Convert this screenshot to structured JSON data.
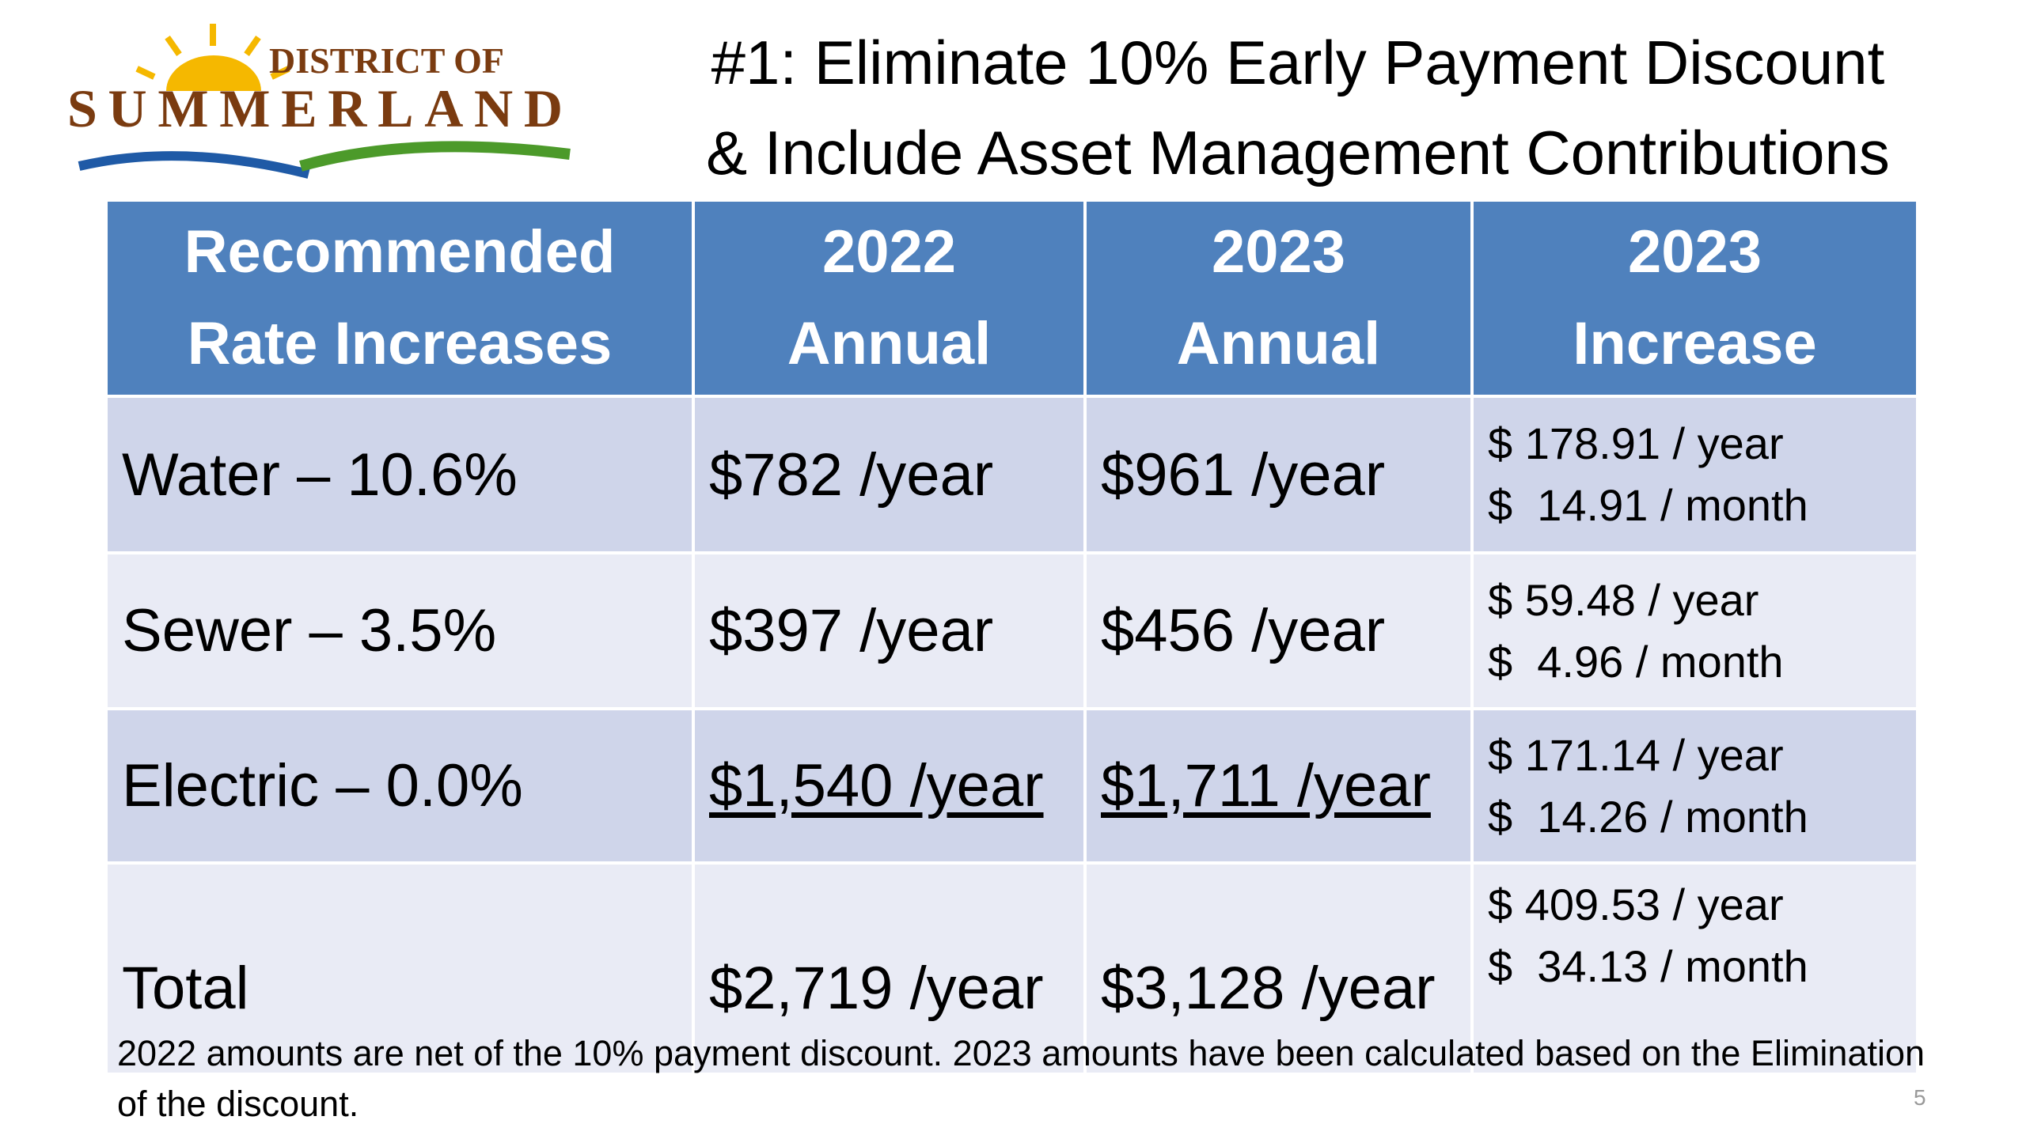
{
  "logo": {
    "line1": "DISTRICT OF",
    "line2": "SUMMERLAND"
  },
  "title": [
    "#1: Eliminate 10% Early Payment Discount",
    "& Include Asset Management Contributions"
  ],
  "table": {
    "header": [
      [
        "Recommended",
        "Rate Increases"
      ],
      [
        "2022",
        "Annual"
      ],
      [
        "2023",
        "Annual"
      ],
      [
        "2023",
        "Increase"
      ]
    ],
    "rows": [
      [
        "Water – 10.6%",
        "$782 /year",
        "$961 /year",
        [
          "$ 178.91 / year",
          "$  14.91 / month"
        ]
      ],
      [
        "Sewer – 3.5%",
        "$397 /year",
        "$456 /year",
        [
          "$ 59.48 / year",
          "$  4.96 / month"
        ]
      ],
      [
        "Electric – 0.0%",
        "$1,540 /year",
        "$1,711 /year",
        [
          "$ 171.14 / year",
          "$  14.26 / month"
        ]
      ],
      [
        "Total",
        "$2,719 /year",
        "$3,128 /year",
        [
          "$ 409.53 / year",
          "$  34.13 / month"
        ]
      ]
    ]
  },
  "footnote": "2022 amounts are net of the 10% payment discount.  2023 amounts have been calculated based on the Elimination of the discount.",
  "page_number": "5"
}
